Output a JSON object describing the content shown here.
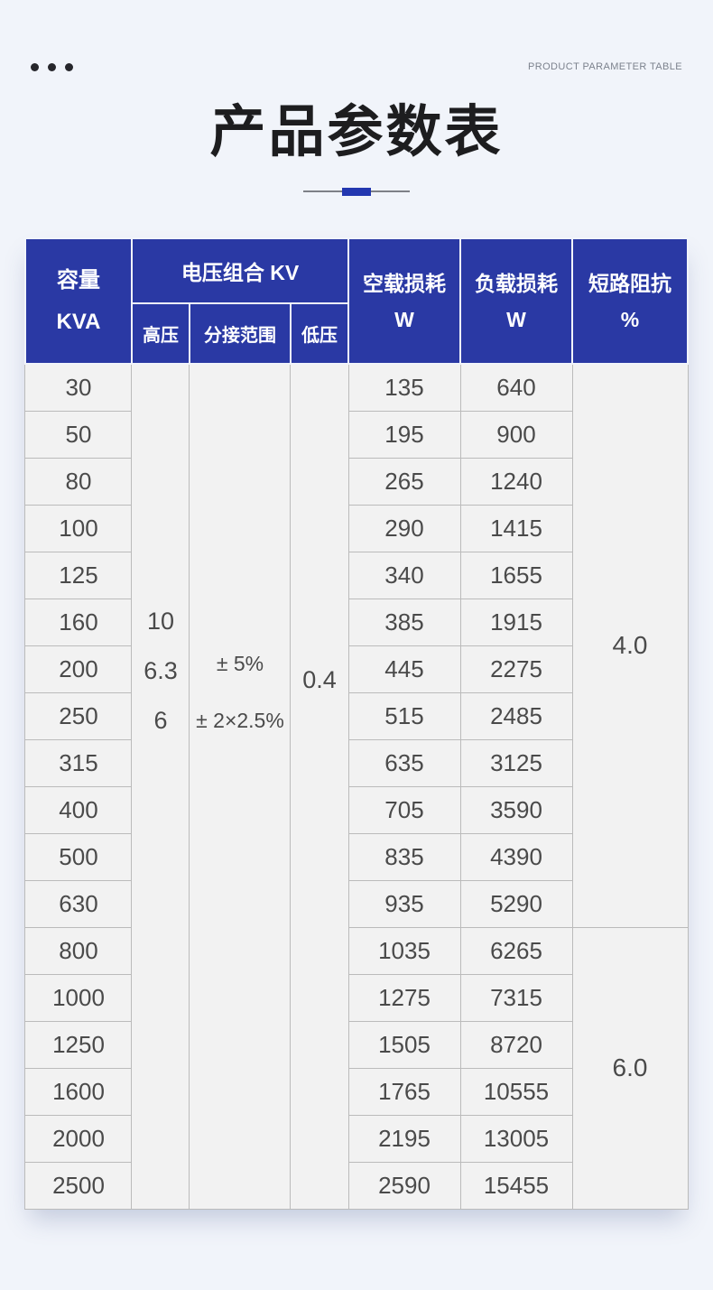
{
  "colors": {
    "page_bg": "#F1F4FA",
    "header_blue": "#2A39A4",
    "divider_blue": "#2337B0",
    "cell_bg": "#F2F2F2",
    "cell_border": "#BBBBBB",
    "body_text": "#4A4A4A",
    "title_text": "#1D1D1F",
    "top_label_text": "#7C828D"
  },
  "header": {
    "top_right_label": "PRODUCT PARAMETER TABLE",
    "title": "产品参数表"
  },
  "table": {
    "head": {
      "capacity_line1": "容量",
      "capacity_line2": "KVA",
      "voltage_group": "电压组合 KV",
      "sub_high": "高压",
      "sub_tap": "分接范围",
      "sub_low": "低压",
      "no_load_line1": "空载损耗",
      "no_load_line2": "W",
      "load_line1": "负载损耗",
      "load_line2": "W",
      "impedance_line1": "短路阻抗",
      "impedance_line2": "%"
    },
    "merged": {
      "high_voltage_values": [
        "10",
        "6.3",
        "6"
      ],
      "tap_range_values": [
        "± 5%",
        "± 2×2.5%"
      ],
      "low_voltage_value": "0.4"
    },
    "impedance_groups": [
      {
        "value": "4.0",
        "rows": 12
      },
      {
        "value": "6.0",
        "rows": 6
      }
    ],
    "rows": [
      {
        "kva": "30",
        "no_load": "135",
        "load": "640"
      },
      {
        "kva": "50",
        "no_load": "195",
        "load": "900"
      },
      {
        "kva": "80",
        "no_load": "265",
        "load": "1240"
      },
      {
        "kva": "100",
        "no_load": "290",
        "load": "1415"
      },
      {
        "kva": "125",
        "no_load": "340",
        "load": "1655"
      },
      {
        "kva": "160",
        "no_load": "385",
        "load": "1915"
      },
      {
        "kva": "200",
        "no_load": "445",
        "load": "2275"
      },
      {
        "kva": "250",
        "no_load": "515",
        "load": "2485"
      },
      {
        "kva": "315",
        "no_load": "635",
        "load": "3125"
      },
      {
        "kva": "400",
        "no_load": "705",
        "load": "3590"
      },
      {
        "kva": "500",
        "no_load": "835",
        "load": "4390"
      },
      {
        "kva": "630",
        "no_load": "935",
        "load": "5290"
      },
      {
        "kva": "800",
        "no_load": "1035",
        "load": "6265"
      },
      {
        "kva": "1000",
        "no_load": "1275",
        "load": "7315"
      },
      {
        "kva": "1250",
        "no_load": "1505",
        "load": "8720"
      },
      {
        "kva": "1600",
        "no_load": "1765",
        "load": "10555"
      },
      {
        "kva": "2000",
        "no_load": "2195",
        "load": "13005"
      },
      {
        "kva": "2500",
        "no_load": "2590",
        "load": "15455"
      }
    ]
  }
}
